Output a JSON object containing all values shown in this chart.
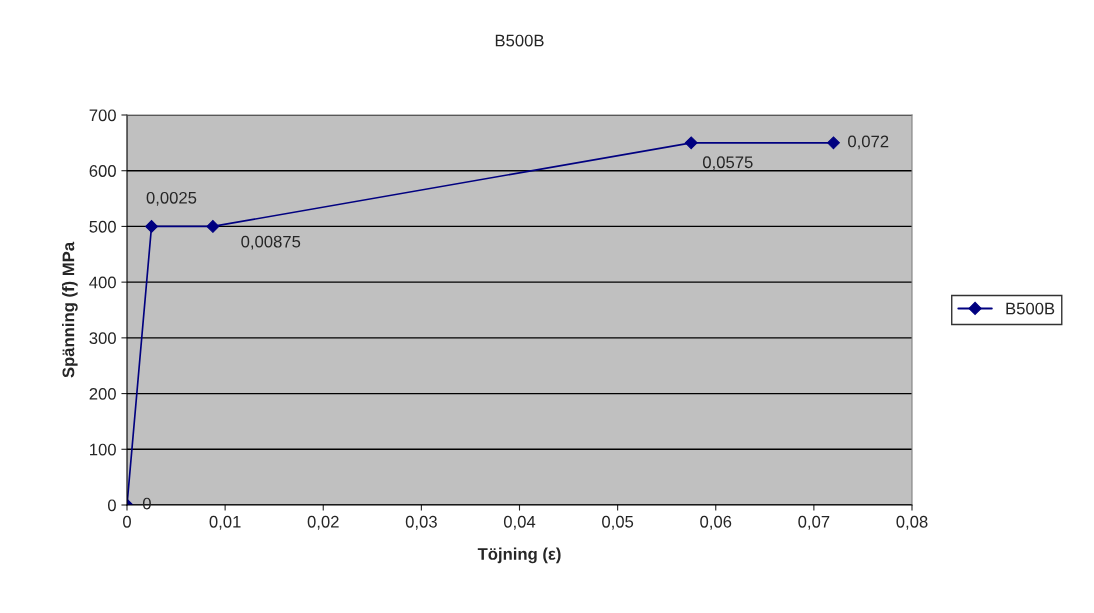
{
  "chart_data": {
    "type": "line",
    "title": "B500B",
    "xlabel": "Töjning (ε)",
    "ylabel": "Spänning (f) MPa",
    "x": [
      0,
      0.0025,
      0.00875,
      0.0575,
      0.072
    ],
    "series": [
      {
        "name": "B500B",
        "color": "#000080",
        "values": [
          0,
          500,
          500,
          650,
          650
        ]
      }
    ],
    "annotations": [
      {
        "text": "0",
        "x": 0,
        "y": 0
      },
      {
        "text": "0,0025",
        "x": 0.0025,
        "y": 500
      },
      {
        "text": "0,00875",
        "x": 0.00875,
        "y": 500
      },
      {
        "text": "0,0575",
        "x": 0.0575,
        "y": 650
      },
      {
        "text": "0,072",
        "x": 0.072,
        "y": 650
      }
    ],
    "xlim": [
      0,
      0.08
    ],
    "xticks": [
      0,
      {
        "value": 0.01,
        "label": "0,01"
      },
      {
        "value": 0.02,
        "label": "0,02"
      },
      {
        "value": 0.03,
        "label": "0,03"
      },
      {
        "value": 0.04,
        "label": "0,04"
      },
      {
        "value": 0.05,
        "label": "0,05"
      },
      {
        "value": 0.06,
        "label": "0,06"
      },
      {
        "value": 0.07,
        "label": "0,07"
      },
      {
        "value": 0.08,
        "label": "0,08"
      }
    ],
    "ylim": [
      0,
      700
    ],
    "yticks": [
      0,
      100,
      200,
      300,
      400,
      500,
      600,
      700
    ],
    "grid": "y",
    "legend": "right",
    "marker": "diamond",
    "line_style": "solid"
  }
}
